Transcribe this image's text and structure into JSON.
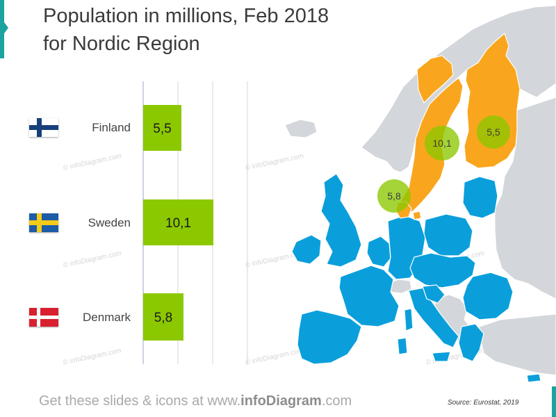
{
  "title": {
    "line1": "Population in millions, Feb 2018",
    "line2": "for Nordic Region"
  },
  "chart_data": {
    "type": "bar",
    "orientation": "horizontal",
    "categories": [
      "Finland",
      "Sweden",
      "Denmark"
    ],
    "values": [
      5.5,
      10.1,
      5.8
    ],
    "value_labels": [
      "5,5",
      "10,1",
      "5,8"
    ],
    "title": "Population in millions, Feb 2018 for Nordic Region",
    "xlabel": "",
    "ylabel": "",
    "xlim": [
      0,
      30
    ],
    "grid": true,
    "bar_color": "#8cc800"
  },
  "flags": [
    "finland-flag-icon",
    "sweden-flag-icon",
    "denmark-flag-icon"
  ],
  "map": {
    "colors": {
      "nordic": "#f9a61e",
      "eu": "#0a9fdb",
      "other": "#d3d6da",
      "bubble": "#8cc800"
    },
    "bubbles": [
      {
        "label": "5,5",
        "country": "Finland"
      },
      {
        "label": "10,1",
        "country": "Sweden"
      },
      {
        "label": "5,8",
        "country": "Denmark"
      }
    ]
  },
  "watermark": "© infoDiagram.com",
  "footer": {
    "prefix": "Get these slides & icons at www.",
    "brand": "infoDiagram",
    "suffix": ".com"
  },
  "source": "Source: Eurostat, 2019"
}
